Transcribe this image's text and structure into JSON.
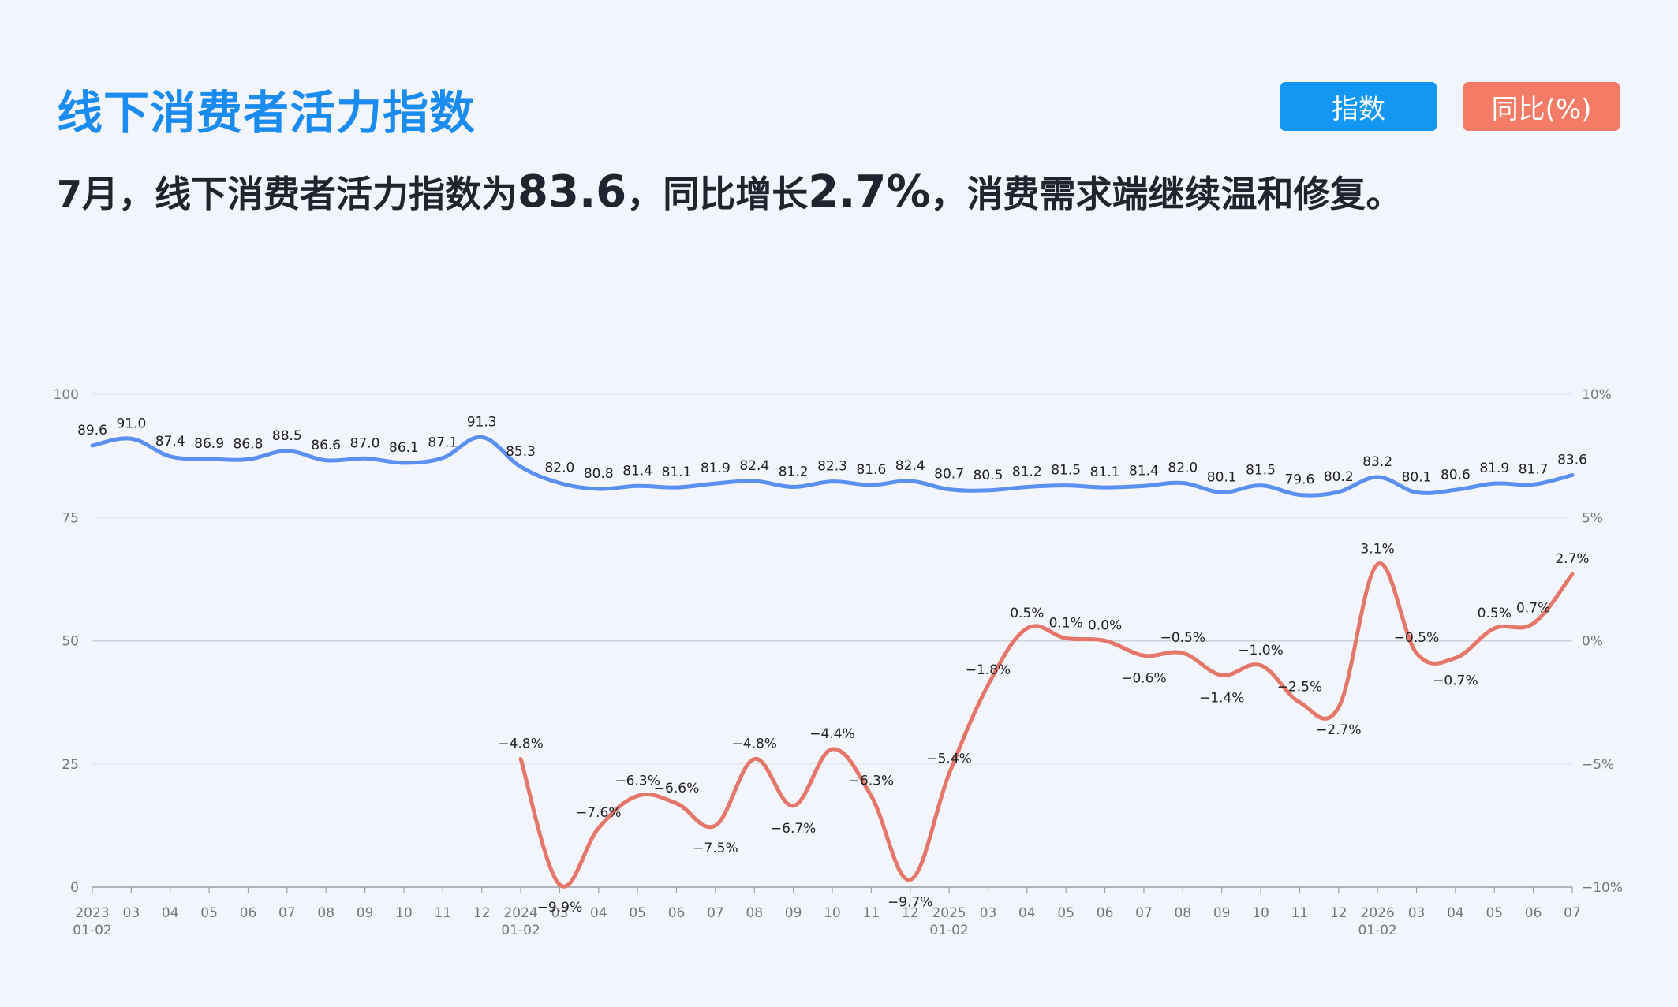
{
  "header": {
    "title": "线下消费者活力指数",
    "subtitle_parts": [
      "7月，线下消费者活力指数为",
      "83.6",
      "，同比增长",
      "2.7%",
      "，消费需求端继续温和修复。"
    ]
  },
  "toggles": {
    "index_label": "指数",
    "yoy_label": "同比(%)"
  },
  "colors": {
    "index_line": "#5b8ff0",
    "yoy_line": "#e5776a",
    "index_button": "#1397f5",
    "yoy_button": "#f47c67",
    "title": "#1a8cf0"
  },
  "chart_data": {
    "type": "line",
    "x_ticks": [
      [
        "2023",
        "01-02"
      ],
      [
        "03"
      ],
      [
        "04"
      ],
      [
        "05"
      ],
      [
        "06"
      ],
      [
        "07"
      ],
      [
        "08"
      ],
      [
        "09"
      ],
      [
        "10"
      ],
      [
        "11"
      ],
      [
        "12"
      ],
      [
        "2024",
        "01-02"
      ],
      [
        "03"
      ],
      [
        "04"
      ],
      [
        "05"
      ],
      [
        "06"
      ],
      [
        "07"
      ],
      [
        "08"
      ],
      [
        "09"
      ],
      [
        "10"
      ],
      [
        "11"
      ],
      [
        "12"
      ],
      [
        "2025",
        "01-02"
      ],
      [
        "03"
      ],
      [
        "04"
      ],
      [
        "05"
      ],
      [
        "06"
      ],
      [
        "07"
      ],
      [
        "08"
      ],
      [
        "09"
      ],
      [
        "10"
      ],
      [
        "11"
      ],
      [
        "12"
      ],
      [
        "2026",
        "01-02"
      ],
      [
        "03"
      ],
      [
        "04"
      ],
      [
        "05"
      ],
      [
        "06"
      ],
      [
        "07"
      ]
    ],
    "y_left": {
      "ticks": [
        "0",
        "25",
        "50",
        "75",
        "100"
      ],
      "range": [
        0,
        100
      ]
    },
    "y_right": {
      "ticks": [
        "−10%",
        "−5%",
        "0%",
        "5%",
        "10%"
      ],
      "range": [
        -10,
        10
      ]
    },
    "grid": true,
    "series": [
      {
        "axis": "left",
        "values": [
          89.6,
          91.0,
          87.4,
          86.9,
          86.8,
          88.5,
          86.6,
          87.0,
          86.1,
          87.1,
          91.3,
          85.3,
          82.0,
          80.8,
          81.4,
          81.1,
          81.9,
          82.4,
          81.2,
          82.3,
          81.6,
          82.4,
          80.7,
          80.5,
          81.2,
          81.5,
          81.1,
          81.4,
          82.0,
          80.1,
          81.5,
          79.6,
          80.2,
          83.2,
          80.1,
          80.6,
          81.9,
          81.7,
          83.6
        ],
        "labels": [
          "89.6",
          "91.0",
          "87.4",
          "86.9",
          "86.8",
          "88.5",
          "86.6",
          "87.0",
          "86.1",
          "87.1",
          "91.3",
          "85.3",
          "82.0",
          "80.8",
          "81.4",
          "81.1",
          "81.9",
          "82.4",
          "81.2",
          "82.3",
          "81.6",
          "82.4",
          "80.7",
          "80.5",
          "81.2",
          "81.5",
          "81.1",
          "81.4",
          "82.0",
          "80.1",
          "81.5",
          "79.6",
          "80.2",
          "83.2",
          "80.1",
          "80.6",
          "81.9",
          "81.7",
          "83.6"
        ]
      },
      {
        "axis": "right",
        "values": [
          null,
          null,
          null,
          null,
          null,
          null,
          null,
          null,
          null,
          null,
          null,
          -4.8,
          -9.9,
          -7.6,
          -6.3,
          -6.6,
          -7.5,
          -4.8,
          -6.7,
          -4.4,
          -6.3,
          -9.7,
          -5.4,
          -1.8,
          0.5,
          0.1,
          0.0,
          -0.6,
          -0.5,
          -1.4,
          -1.0,
          -2.5,
          -2.7,
          3.1,
          -0.5,
          -0.7,
          0.5,
          0.7,
          2.7
        ],
        "labels": [
          null,
          null,
          null,
          null,
          null,
          null,
          null,
          null,
          null,
          null,
          null,
          "−4.8%",
          "−9.9%",
          "−7.6%",
          "−6.3%",
          "−6.6%",
          "−7.5%",
          "−4.8%",
          "−6.7%",
          "−4.4%",
          "−6.3%",
          "−9.7%",
          "−5.4%",
          "−1.8%",
          "0.5%",
          "0.1%",
          "0.0%",
          "−0.6%",
          "−0.5%",
          "−1.4%",
          "−1.0%",
          "−2.5%",
          "−2.7%",
          "3.1%",
          "−0.5%",
          "−0.7%",
          "0.5%",
          "0.7%",
          "2.7%"
        ]
      }
    ]
  }
}
